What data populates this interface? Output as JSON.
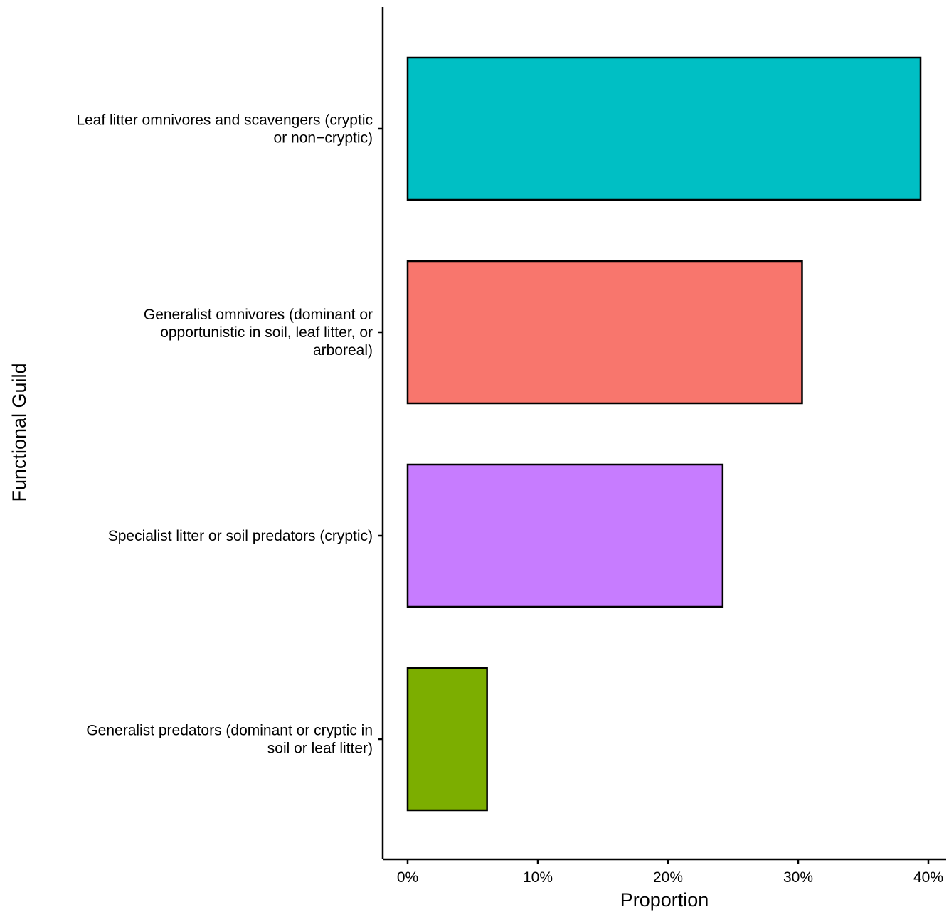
{
  "chart_data": {
    "type": "bar",
    "orientation": "horizontal",
    "categories": [
      [
        "Leaf litter omnivores and scavengers (cryptic",
        "or non−cryptic)"
      ],
      [
        "Generalist omnivores (dominant or",
        "opportunistic in soil, leaf litter, or",
        "arboreal)"
      ],
      [
        "Specialist litter or soil predators (cryptic)"
      ],
      [
        "Generalist predators (dominant or cryptic in",
        "soil or leaf litter)"
      ]
    ],
    "values": [
      0.394,
      0.303,
      0.242,
      0.061
    ],
    "colors": [
      "#00BFC4",
      "#F8766D",
      "#C77CFF",
      "#7CAE00"
    ],
    "xlabel": "Proportion",
    "ylabel": "Functional Guild",
    "xlim": [
      -0.019,
      0.414
    ],
    "x_ticks": [
      0,
      0.1,
      0.2,
      0.3,
      0.4
    ],
    "x_tick_labels": [
      "0%",
      "10%",
      "20%",
      "30%",
      "40%"
    ],
    "grid": false,
    "legend": "none"
  }
}
